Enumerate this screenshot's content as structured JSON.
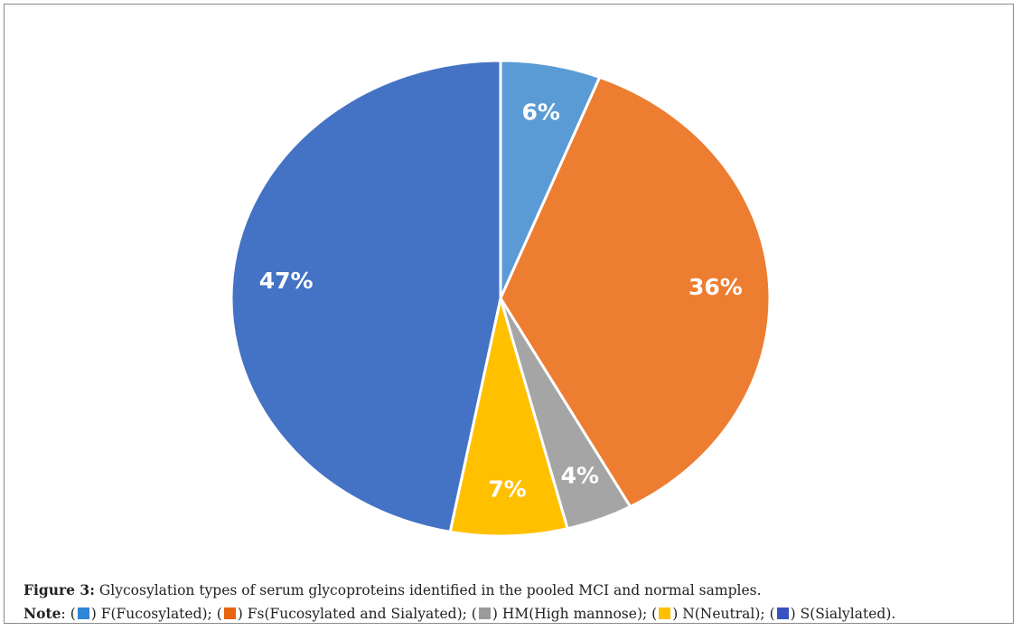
{
  "chart_data": {
    "type": "pie",
    "slices": [
      {
        "category": "F(Fucosylated)",
        "value": 6,
        "label": "6%",
        "color": "#5b9bd5"
      },
      {
        "category": "Fs(Fucosylated and Sialyated)",
        "value": 36,
        "label": "36%",
        "color": "#ed7d31"
      },
      {
        "category": "HM(High mannose)",
        "value": 4,
        "label": "4%",
        "color": "#a5a5a5"
      },
      {
        "category": "N(Neutral)",
        "value": 7,
        "label": "7%",
        "color": "#ffc000"
      },
      {
        "category": "S(Sialylated)",
        "value": 47,
        "label": "47%",
        "color": "#4472c4"
      }
    ],
    "start_angle": "12 o'clock",
    "direction": "clockwise"
  },
  "caption": {
    "figure_label": "Figure 3:",
    "figure_text": "Glycosylation types of serum glycoproteins identified in the pooled MCI and normal samples.",
    "note_label": "Note",
    "legend": [
      {
        "text": "F(Fucosylated);",
        "color": "#2f86d6"
      },
      {
        "text": "Fs(Fucosylated and Sialyated);",
        "color": "#e8650e"
      },
      {
        "text": "HM(High mannose);",
        "color": "#9a9a9a"
      },
      {
        "text": "N(Neutral);",
        "color": "#ffc000"
      },
      {
        "text": "S(Sialylated).",
        "color": "#3a52c0"
      }
    ]
  }
}
